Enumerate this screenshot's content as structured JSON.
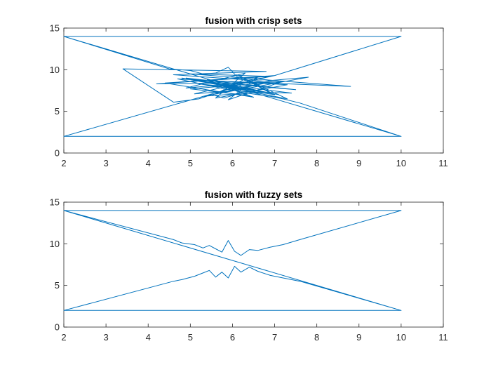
{
  "chart_data": [
    {
      "type": "line",
      "title": "fusion with crisp sets",
      "xlabel": "",
      "ylabel": "",
      "xlim": [
        2,
        11
      ],
      "ylim": [
        0,
        15
      ],
      "xticks": [
        2,
        3,
        4,
        5,
        6,
        7,
        8,
        9,
        10,
        11
      ],
      "yticks": [
        0,
        5,
        10,
        15
      ],
      "grid": false,
      "series": [
        {
          "color": "#0072bd",
          "x": [
            2,
            10,
            7.0,
            6.7,
            6.3,
            6.1,
            5.9,
            5.6,
            5.3,
            5.0,
            4.5,
            2,
            10,
            7.6,
            7.2,
            6.9,
            6.6,
            6.2,
            6.0,
            5.8,
            5.5,
            5.2,
            4.6,
            3.4,
            6.8,
            4.6,
            7.1,
            4.2,
            6.9,
            5.0,
            8.8,
            5.4,
            6.2,
            7.4,
            5.2,
            7.1,
            4.8,
            6.6,
            5.3,
            7.8,
            4.9,
            6.3,
            5.6,
            7.3,
            4.7,
            6.0,
            5.1,
            7.0,
            4.4,
            6.5,
            5.5,
            7.5,
            4.9,
            6.7,
            5.8,
            7.3,
            6.1,
            6.9,
            5.4,
            6.4,
            5.0,
            7.2,
            5.9,
            6.6,
            6.0,
            5.2,
            7.0,
            6.3,
            5.6,
            6.8,
            5.9,
            6.2,
            2,
            10
          ],
          "y": [
            14,
            14,
            9.3,
            9.0,
            8.7,
            9.2,
            10.3,
            9.6,
            9.5,
            9.9,
            10.1,
            14,
            2,
            6.0,
            6.5,
            6.8,
            7.0,
            7.3,
            6.9,
            6.6,
            7.0,
            6.5,
            6.1,
            10.1,
            9.8,
            9.4,
            8.5,
            8.3,
            9.2,
            9.5,
            8.0,
            8.7,
            7.4,
            7.2,
            8.6,
            7.0,
            9.0,
            7.3,
            6.8,
            9.1,
            7.8,
            9.6,
            6.6,
            8.2,
            8.9,
            7.5,
            7.1,
            9.3,
            8.4,
            6.7,
            8.5,
            7.6,
            9.0,
            7.4,
            8.0,
            6.5,
            9.4,
            7.2,
            8.8,
            6.9,
            7.7,
            8.6,
            6.4,
            9.1,
            7.9,
            8.3,
            7.0,
            8.9,
            7.1,
            8.4,
            7.6,
            8.1,
            2,
            2
          ]
        }
      ]
    },
    {
      "type": "line",
      "title": "fusion with fuzzy sets",
      "xlabel": "",
      "ylabel": "",
      "xlim": [
        2,
        11
      ],
      "ylim": [
        0,
        15
      ],
      "xticks": [
        2,
        3,
        4,
        5,
        6,
        7,
        8,
        9,
        10,
        11
      ],
      "yticks": [
        0,
        5,
        10,
        15
      ],
      "grid": false,
      "series": [
        {
          "color": "#0072bd",
          "x": [
            2,
            10,
            7.6,
            7.2,
            6.9,
            6.6,
            6.4,
            6.2,
            6.05,
            5.9,
            5.75,
            5.6,
            5.45,
            5.3,
            5.1,
            4.8,
            4.6,
            2,
            10,
            7.6,
            7.2,
            6.9,
            6.6,
            6.4,
            6.2,
            6.05,
            5.9,
            5.75,
            5.6,
            5.45,
            5.3,
            5.1,
            4.8,
            4.6,
            2,
            10
          ],
          "y": [
            14,
            14,
            10.5,
            9.9,
            9.6,
            9.2,
            9.3,
            8.6,
            9.1,
            10.4,
            9.0,
            9.4,
            9.8,
            9.5,
            9.9,
            10.1,
            10.5,
            14,
            2,
            5.5,
            5.9,
            6.2,
            6.7,
            7.2,
            6.6,
            7.3,
            5.9,
            6.6,
            6.0,
            6.8,
            6.5,
            6.1,
            5.7,
            5.5,
            2,
            2
          ]
        }
      ]
    }
  ]
}
